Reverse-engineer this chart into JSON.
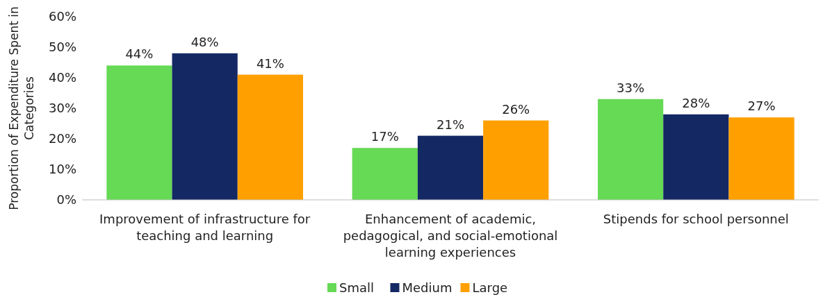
{
  "chart_data": {
    "type": "bar",
    "ylabel": "Proportion of Expenditure Spent in Categories",
    "categories": [
      "Improvement of infrastructure for teaching and learning",
      "Enhancement of academic, pedagogical, and social-emotional learning experiences",
      "Stipends for school personnel"
    ],
    "series": [
      {
        "name": "Small",
        "color": "#66d955",
        "values": [
          44,
          17,
          33
        ],
        "value_labels": [
          "44%",
          "17%",
          "33%"
        ]
      },
      {
        "name": "Medium",
        "color": "#142864",
        "values": [
          48,
          21,
          28
        ],
        "value_labels": [
          "48%",
          "21%",
          "28%"
        ]
      },
      {
        "name": "Large",
        "color": "#ffa000",
        "values": [
          41,
          26,
          27
        ],
        "value_labels": [
          "41%",
          "26%",
          "27%"
        ]
      }
    ],
    "ylim": [
      0,
      60
    ],
    "yticks": [
      {
        "value": 0,
        "label": "0%"
      },
      {
        "value": 10,
        "label": "10%"
      },
      {
        "value": 20,
        "label": "20%"
      },
      {
        "value": 30,
        "label": "30%"
      },
      {
        "value": 40,
        "label": "40%"
      },
      {
        "value": 50,
        "label": "50%"
      },
      {
        "value": 60,
        "label": "60%"
      }
    ],
    "grid": false,
    "legend": "bottom"
  }
}
